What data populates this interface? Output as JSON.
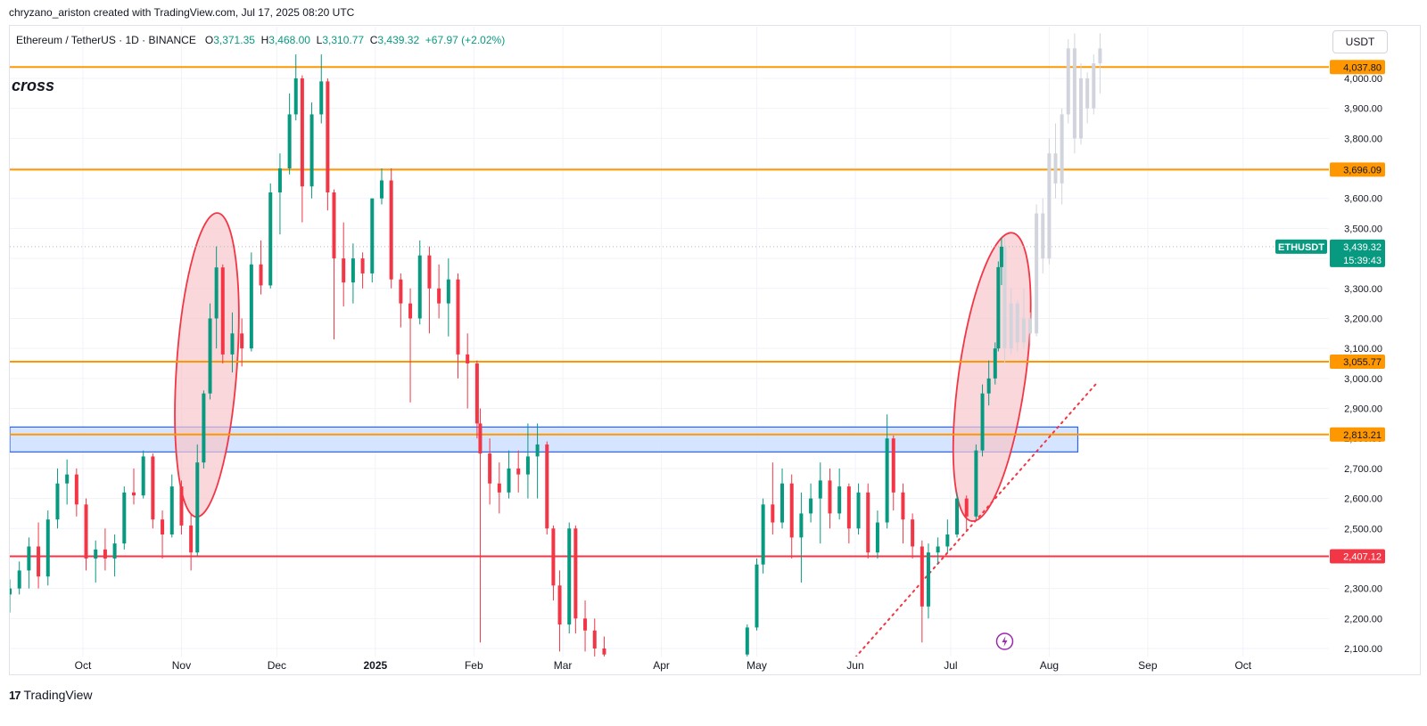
{
  "attribution": "chryzano_ariston created with TradingView.com, Jul 17, 2025 08:20 UTC",
  "legend": {
    "symbol": "Ethereum / TetherUS · 1D · BINANCE",
    "o_label": "O",
    "o": "3,371.35",
    "h_label": "H",
    "h": "3,468.00",
    "l_label": "L",
    "l": "3,310.77",
    "c_label": "C",
    "c": "3,439.32",
    "change": "+67.97 (+2.02%)"
  },
  "annotation_text": "cross",
  "currency": "USDT",
  "footer": {
    "logo_mark": "17",
    "brand": "TradingView"
  },
  "colors": {
    "up": "#089981",
    "down": "#f23645",
    "level": "#ff9800",
    "support": "#f23645",
    "zone_fill": "#cfe0ff",
    "zone_border": "#2962ff",
    "ellipse_fill": "#f7c6cb",
    "ellipse_stroke": "#f23645",
    "projection": "#d1d4dc"
  },
  "chart_data": {
    "type": "candlestick",
    "symbol": "ETHUSDT",
    "price_axis": {
      "ylim": [
        2070,
        4080
      ],
      "ticks": [
        "2,100.00",
        "2,200.00",
        "2,300.00",
        "2,400.00",
        "2,500.00",
        "2,600.00",
        "2,700.00",
        "2,800.00",
        "2,900.00",
        "3,000.00",
        "3,100.00",
        "3,200.00",
        "3,300.00",
        "3,400.00",
        "3,500.00",
        "3,600.00",
        "3,700.00",
        "3,800.00",
        "3,900.00",
        "4,000.00"
      ],
      "tick_values": [
        2100,
        2200,
        2300,
        2400,
        2500,
        2600,
        2700,
        2800,
        2900,
        3000,
        3100,
        3200,
        3300,
        3400,
        3500,
        3600,
        3700,
        3800,
        3900,
        4000
      ]
    },
    "time_axis": {
      "start": "2024-09-08",
      "end": "2025-10-28",
      "labels": [
        {
          "text": "Oct",
          "date": "2024-10-01"
        },
        {
          "text": "Nov",
          "date": "2024-11-01"
        },
        {
          "text": "Dec",
          "date": "2024-12-01"
        },
        {
          "text": "2025",
          "date": "2025-01-01",
          "bold": true
        },
        {
          "text": "Feb",
          "date": "2025-02-01"
        },
        {
          "text": "Mar",
          "date": "2025-03-01"
        },
        {
          "text": "Apr",
          "date": "2025-04-01"
        },
        {
          "text": "May",
          "date": "2025-05-01"
        },
        {
          "text": "Jun",
          "date": "2025-06-01"
        },
        {
          "text": "Jul",
          "date": "2025-07-01"
        },
        {
          "text": "Aug",
          "date": "2025-08-01"
        },
        {
          "text": "Sep",
          "date": "2025-09-01"
        },
        {
          "text": "Oct",
          "date": "2025-10-01"
        }
      ]
    },
    "horizontal_levels": [
      {
        "value": 4037.8,
        "label": "4,037.80",
        "role": "resistance"
      },
      {
        "value": 3696.09,
        "label": "3,696.09",
        "role": "resistance"
      },
      {
        "value": 3055.77,
        "label": "3,055.77",
        "role": "resistance"
      },
      {
        "value": 2813.21,
        "label": "2,813.21",
        "role": "resistance"
      },
      {
        "value": 2407.12,
        "label": "2,407.12",
        "role": "support"
      }
    ],
    "current_price": {
      "label": "ETHUSDT",
      "value": 3439.32,
      "price_text": "3,439.32",
      "countdown": "15:39:43"
    },
    "zone": {
      "start": "2024-09-08",
      "end": "2025-08-10",
      "low": 2755,
      "high": 2838
    },
    "ellipses": [
      {
        "center_date": "2024-11-09",
        "center_price": 3045,
        "width_days": 19,
        "height_price": 1015
      },
      {
        "center_date": "2025-07-14",
        "center_price": 3005,
        "width_days": 21,
        "height_price": 970
      }
    ],
    "trendline": {
      "start_date": "2025-06-01",
      "start_price": 2070,
      "end_date": "2025-08-16",
      "end_price": 2985
    },
    "candles": [
      {
        "d": "2024-09-08",
        "o": 2280,
        "h": 2330,
        "l": 2220,
        "c": 2300
      },
      {
        "d": "2024-09-11",
        "o": 2300,
        "h": 2390,
        "l": 2280,
        "c": 2360
      },
      {
        "d": "2024-09-14",
        "o": 2360,
        "h": 2470,
        "l": 2300,
        "c": 2440
      },
      {
        "d": "2024-09-17",
        "o": 2440,
        "h": 2520,
        "l": 2300,
        "c": 2340
      },
      {
        "d": "2024-09-20",
        "o": 2340,
        "h": 2560,
        "l": 2310,
        "c": 2530
      },
      {
        "d": "2024-09-23",
        "o": 2530,
        "h": 2700,
        "l": 2500,
        "c": 2650
      },
      {
        "d": "2024-09-26",
        "o": 2650,
        "h": 2730,
        "l": 2580,
        "c": 2680
      },
      {
        "d": "2024-09-29",
        "o": 2680,
        "h": 2700,
        "l": 2540,
        "c": 2580
      },
      {
        "d": "2024-10-02",
        "o": 2580,
        "h": 2600,
        "l": 2360,
        "c": 2400
      },
      {
        "d": "2024-10-05",
        "o": 2400,
        "h": 2460,
        "l": 2320,
        "c": 2430
      },
      {
        "d": "2024-10-08",
        "o": 2430,
        "h": 2500,
        "l": 2360,
        "c": 2400
      },
      {
        "d": "2024-10-11",
        "o": 2400,
        "h": 2480,
        "l": 2340,
        "c": 2450
      },
      {
        "d": "2024-10-14",
        "o": 2450,
        "h": 2640,
        "l": 2430,
        "c": 2620
      },
      {
        "d": "2024-10-17",
        "o": 2620,
        "h": 2700,
        "l": 2580,
        "c": 2610
      },
      {
        "d": "2024-10-20",
        "o": 2610,
        "h": 2760,
        "l": 2600,
        "c": 2740
      },
      {
        "d": "2024-10-23",
        "o": 2740,
        "h": 2750,
        "l": 2500,
        "c": 2530
      },
      {
        "d": "2024-10-26",
        "o": 2530,
        "h": 2560,
        "l": 2400,
        "c": 2480
      },
      {
        "d": "2024-10-29",
        "o": 2480,
        "h": 2680,
        "l": 2470,
        "c": 2640
      },
      {
        "d": "2024-11-01",
        "o": 2640,
        "h": 2660,
        "l": 2480,
        "c": 2510
      },
      {
        "d": "2024-11-04",
        "o": 2510,
        "h": 2550,
        "l": 2360,
        "c": 2420
      },
      {
        "d": "2024-11-06",
        "o": 2420,
        "h": 2780,
        "l": 2410,
        "c": 2720
      },
      {
        "d": "2024-11-08",
        "o": 2720,
        "h": 2960,
        "l": 2700,
        "c": 2950
      },
      {
        "d": "2024-11-10",
        "o": 2950,
        "h": 3250,
        "l": 2930,
        "c": 3200
      },
      {
        "d": "2024-11-12",
        "o": 3200,
        "h": 3440,
        "l": 3100,
        "c": 3370
      },
      {
        "d": "2024-11-14",
        "o": 3370,
        "h": 3380,
        "l": 3050,
        "c": 3080
      },
      {
        "d": "2024-11-17",
        "o": 3080,
        "h": 3220,
        "l": 3020,
        "c": 3150
      },
      {
        "d": "2024-11-20",
        "o": 3150,
        "h": 3200,
        "l": 3040,
        "c": 3100
      },
      {
        "d": "2024-11-23",
        "o": 3100,
        "h": 3420,
        "l": 3090,
        "c": 3380
      },
      {
        "d": "2024-11-26",
        "o": 3380,
        "h": 3460,
        "l": 3280,
        "c": 3310
      },
      {
        "d": "2024-11-29",
        "o": 3310,
        "h": 3650,
        "l": 3300,
        "c": 3620
      },
      {
        "d": "2024-12-02",
        "o": 3620,
        "h": 3750,
        "l": 3480,
        "c": 3700
      },
      {
        "d": "2024-12-05",
        "o": 3700,
        "h": 3950,
        "l": 3680,
        "c": 3880
      },
      {
        "d": "2024-12-07",
        "o": 3880,
        "h": 4080,
        "l": 3860,
        "c": 4000
      },
      {
        "d": "2024-12-09",
        "o": 4000,
        "h": 4010,
        "l": 3520,
        "c": 3640
      },
      {
        "d": "2024-12-12",
        "o": 3640,
        "h": 3920,
        "l": 3600,
        "c": 3880
      },
      {
        "d": "2024-12-15",
        "o": 3880,
        "h": 4080,
        "l": 3850,
        "c": 3990
      },
      {
        "d": "2024-12-17",
        "o": 3990,
        "h": 4000,
        "l": 3560,
        "c": 3620
      },
      {
        "d": "2024-12-19",
        "o": 3620,
        "h": 3630,
        "l": 3130,
        "c": 3400
      },
      {
        "d": "2024-12-22",
        "o": 3400,
        "h": 3520,
        "l": 3240,
        "c": 3320
      },
      {
        "d": "2024-12-25",
        "o": 3320,
        "h": 3450,
        "l": 3250,
        "c": 3400
      },
      {
        "d": "2024-12-28",
        "o": 3400,
        "h": 3420,
        "l": 3300,
        "c": 3350
      },
      {
        "d": "2024-12-31",
        "o": 3350,
        "h": 3600,
        "l": 3320,
        "c": 3600
      },
      {
        "d": "2025-01-03",
        "o": 3600,
        "h": 3700,
        "l": 3580,
        "c": 3660
      },
      {
        "d": "2025-01-06",
        "o": 3660,
        "h": 3700,
        "l": 3300,
        "c": 3330
      },
      {
        "d": "2025-01-09",
        "o": 3330,
        "h": 3350,
        "l": 3170,
        "c": 3250
      },
      {
        "d": "2025-01-12",
        "o": 3250,
        "h": 3300,
        "l": 2920,
        "c": 3200
      },
      {
        "d": "2025-01-15",
        "o": 3200,
        "h": 3460,
        "l": 3180,
        "c": 3410
      },
      {
        "d": "2025-01-18",
        "o": 3410,
        "h": 3440,
        "l": 3150,
        "c": 3300
      },
      {
        "d": "2025-01-21",
        "o": 3300,
        "h": 3380,
        "l": 3200,
        "c": 3250
      },
      {
        "d": "2025-01-24",
        "o": 3250,
        "h": 3400,
        "l": 3140,
        "c": 3330
      },
      {
        "d": "2025-01-27",
        "o": 3330,
        "h": 3350,
        "l": 3000,
        "c": 3080
      },
      {
        "d": "2025-01-30",
        "o": 3080,
        "h": 3150,
        "l": 2900,
        "c": 3050
      },
      {
        "d": "2025-02-02",
        "o": 3050,
        "h": 3060,
        "l": 2800,
        "c": 2850
      },
      {
        "d": "2025-02-03",
        "o": 2850,
        "h": 2900,
        "l": 2120,
        "c": 2750
      },
      {
        "d": "2025-02-06",
        "o": 2750,
        "h": 2800,
        "l": 2580,
        "c": 2650
      },
      {
        "d": "2025-02-09",
        "o": 2650,
        "h": 2720,
        "l": 2550,
        "c": 2620
      },
      {
        "d": "2025-02-12",
        "o": 2620,
        "h": 2760,
        "l": 2600,
        "c": 2700
      },
      {
        "d": "2025-02-15",
        "o": 2700,
        "h": 2760,
        "l": 2620,
        "c": 2680
      },
      {
        "d": "2025-02-18",
        "o": 2680,
        "h": 2850,
        "l": 2600,
        "c": 2740
      },
      {
        "d": "2025-02-21",
        "o": 2740,
        "h": 2850,
        "l": 2600,
        "c": 2780
      },
      {
        "d": "2025-02-24",
        "o": 2780,
        "h": 2790,
        "l": 2480,
        "c": 2500
      },
      {
        "d": "2025-02-26",
        "o": 2500,
        "h": 2510,
        "l": 2260,
        "c": 2310
      },
      {
        "d": "2025-02-28",
        "o": 2310,
        "h": 2360,
        "l": 2090,
        "c": 2180
      },
      {
        "d": "2025-03-03",
        "o": 2180,
        "h": 2520,
        "l": 2150,
        "c": 2500
      },
      {
        "d": "2025-03-05",
        "o": 2500,
        "h": 2510,
        "l": 2150,
        "c": 2200
      },
      {
        "d": "2025-03-08",
        "o": 2200,
        "h": 2260,
        "l": 2090,
        "c": 2160
      },
      {
        "d": "2025-03-11",
        "o": 2160,
        "h": 2200,
        "l": 2070,
        "c": 2100
      },
      {
        "d": "2025-03-14",
        "o": 2100,
        "h": 2140,
        "l": 2070,
        "c": 2080
      },
      {
        "d": "2025-04-28",
        "o": 2080,
        "h": 2180,
        "l": 2070,
        "c": 2170
      },
      {
        "d": "2025-05-01",
        "o": 2170,
        "h": 2400,
        "l": 2160,
        "c": 2380
      },
      {
        "d": "2025-05-03",
        "o": 2380,
        "h": 2600,
        "l": 2350,
        "c": 2580
      },
      {
        "d": "2025-05-06",
        "o": 2580,
        "h": 2720,
        "l": 2480,
        "c": 2520
      },
      {
        "d": "2025-05-09",
        "o": 2520,
        "h": 2700,
        "l": 2500,
        "c": 2650
      },
      {
        "d": "2025-05-12",
        "o": 2650,
        "h": 2680,
        "l": 2400,
        "c": 2470
      },
      {
        "d": "2025-05-15",
        "o": 2470,
        "h": 2620,
        "l": 2320,
        "c": 2550
      },
      {
        "d": "2025-05-18",
        "o": 2550,
        "h": 2650,
        "l": 2520,
        "c": 2600
      },
      {
        "d": "2025-05-21",
        "o": 2600,
        "h": 2720,
        "l": 2450,
        "c": 2660
      },
      {
        "d": "2025-05-24",
        "o": 2660,
        "h": 2700,
        "l": 2500,
        "c": 2550
      },
      {
        "d": "2025-05-27",
        "o": 2550,
        "h": 2700,
        "l": 2530,
        "c": 2640
      },
      {
        "d": "2025-05-30",
        "o": 2640,
        "h": 2650,
        "l": 2450,
        "c": 2500
      },
      {
        "d": "2025-06-02",
        "o": 2500,
        "h": 2650,
        "l": 2480,
        "c": 2620
      },
      {
        "d": "2025-06-05",
        "o": 2620,
        "h": 2650,
        "l": 2400,
        "c": 2420
      },
      {
        "d": "2025-06-08",
        "o": 2420,
        "h": 2560,
        "l": 2400,
        "c": 2520
      },
      {
        "d": "2025-06-11",
        "o": 2520,
        "h": 2880,
        "l": 2500,
        "c": 2800
      },
      {
        "d": "2025-06-13",
        "o": 2800,
        "h": 2810,
        "l": 2560,
        "c": 2620
      },
      {
        "d": "2025-06-16",
        "o": 2620,
        "h": 2650,
        "l": 2450,
        "c": 2530
      },
      {
        "d": "2025-06-19",
        "o": 2530,
        "h": 2550,
        "l": 2400,
        "c": 2440
      },
      {
        "d": "2025-06-22",
        "o": 2440,
        "h": 2460,
        "l": 2120,
        "c": 2240
      },
      {
        "d": "2025-06-24",
        "o": 2240,
        "h": 2450,
        "l": 2200,
        "c": 2420
      },
      {
        "d": "2025-06-27",
        "o": 2420,
        "h": 2470,
        "l": 2380,
        "c": 2440
      },
      {
        "d": "2025-06-30",
        "o": 2440,
        "h": 2530,
        "l": 2420,
        "c": 2480
      },
      {
        "d": "2025-07-03",
        "o": 2480,
        "h": 2620,
        "l": 2470,
        "c": 2600
      },
      {
        "d": "2025-07-06",
        "o": 2600,
        "h": 2610,
        "l": 2490,
        "c": 2540
      },
      {
        "d": "2025-07-09",
        "o": 2540,
        "h": 2780,
        "l": 2530,
        "c": 2760
      },
      {
        "d": "2025-07-11",
        "o": 2760,
        "h": 2980,
        "l": 2740,
        "c": 2950
      },
      {
        "d": "2025-07-13",
        "o": 2950,
        "h": 3060,
        "l": 2910,
        "c": 3000
      },
      {
        "d": "2025-07-15",
        "o": 3000,
        "h": 3120,
        "l": 2980,
        "c": 3100
      },
      {
        "d": "2025-07-16",
        "o": 3100,
        "h": 3390,
        "l": 3090,
        "c": 3371
      },
      {
        "d": "2025-07-17",
        "o": 3371,
        "h": 3468,
        "l": 3311,
        "c": 3439
      }
    ],
    "projection": [
      {
        "d": "2025-07-18",
        "o": 3440,
        "h": 3470,
        "l": 3050,
        "c": 3100
      },
      {
        "d": "2025-07-20",
        "o": 3100,
        "h": 3300,
        "l": 3080,
        "c": 3250
      },
      {
        "d": "2025-07-22",
        "o": 3250,
        "h": 3260,
        "l": 3090,
        "c": 3120
      },
      {
        "d": "2025-07-24",
        "o": 3120,
        "h": 3300,
        "l": 3100,
        "c": 3200
      },
      {
        "d": "2025-07-26",
        "o": 3200,
        "h": 3220,
        "l": 3110,
        "c": 3150
      },
      {
        "d": "2025-07-28",
        "o": 3150,
        "h": 3580,
        "l": 3140,
        "c": 3550
      },
      {
        "d": "2025-07-30",
        "o": 3550,
        "h": 3600,
        "l": 3350,
        "c": 3400
      },
      {
        "d": "2025-08-01",
        "o": 3400,
        "h": 3800,
        "l": 3380,
        "c": 3750
      },
      {
        "d": "2025-08-03",
        "o": 3750,
        "h": 3850,
        "l": 3600,
        "c": 3650
      },
      {
        "d": "2025-08-05",
        "o": 3650,
        "h": 3900,
        "l": 3580,
        "c": 3880
      },
      {
        "d": "2025-08-07",
        "o": 3880,
        "h": 4130,
        "l": 3850,
        "c": 4100
      },
      {
        "d": "2025-08-09",
        "o": 4100,
        "h": 4150,
        "l": 3750,
        "c": 3800
      },
      {
        "d": "2025-08-11",
        "o": 3800,
        "h": 4050,
        "l": 3780,
        "c": 4000
      },
      {
        "d": "2025-08-13",
        "o": 4000,
        "h": 4020,
        "l": 3850,
        "c": 3900
      },
      {
        "d": "2025-08-15",
        "o": 3900,
        "h": 4080,
        "l": 3880,
        "c": 4050
      },
      {
        "d": "2025-08-17",
        "o": 4050,
        "h": 4150,
        "l": 3950,
        "c": 4100
      }
    ]
  }
}
